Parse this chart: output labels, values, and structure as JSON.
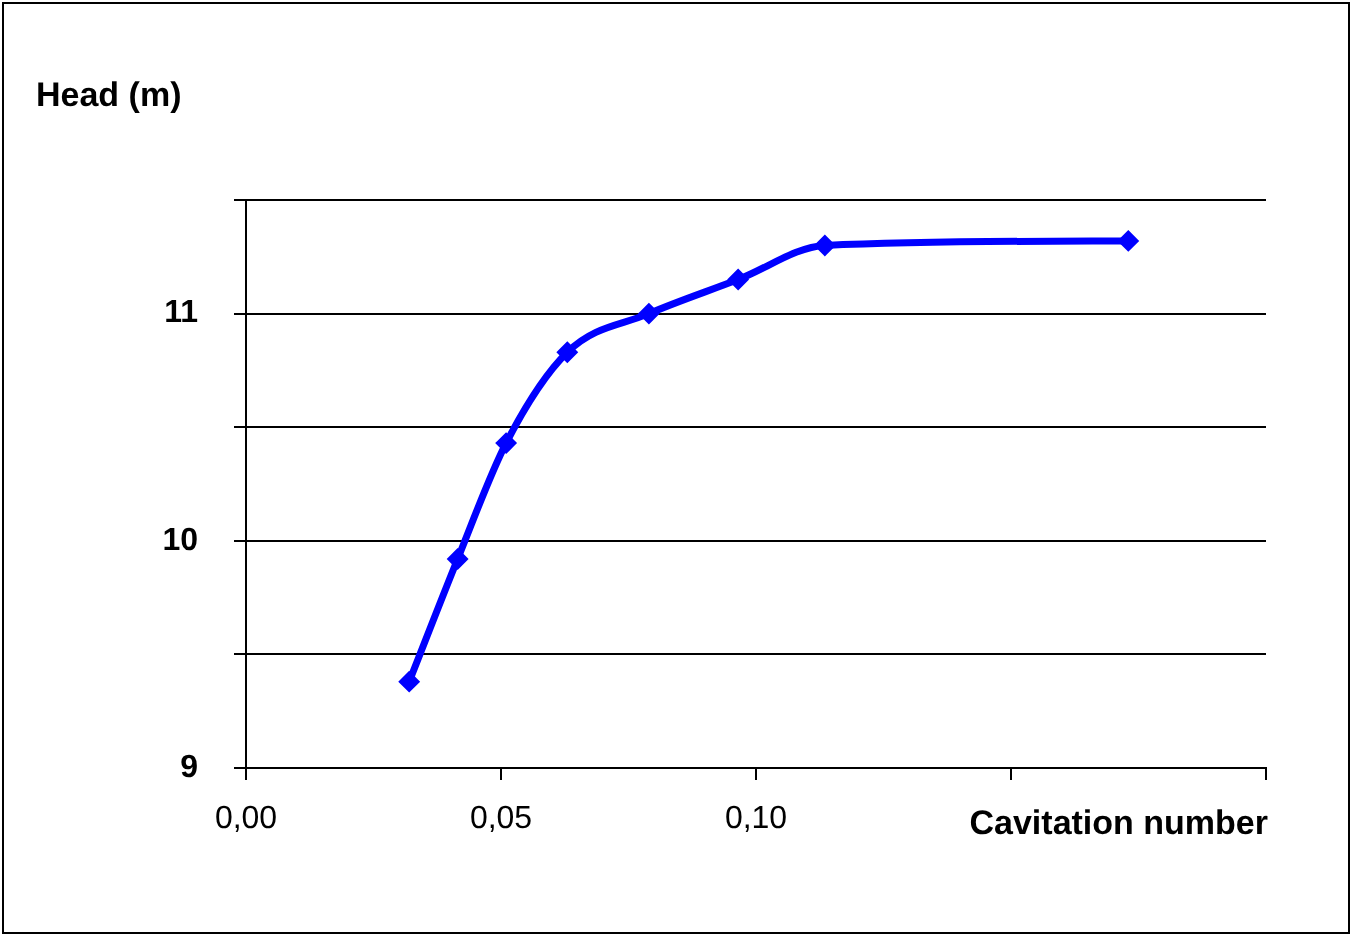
{
  "chart_data": {
    "type": "line",
    "ylabel": "Head (m)",
    "xlabel": "Cavitation number",
    "x": [
      0.032,
      0.0415,
      0.051,
      0.063,
      0.079,
      0.0965,
      0.1135,
      0.173
    ],
    "series": [
      {
        "color": "#0000ff",
        "values": [
          9.38,
          9.92,
          10.43,
          10.83,
          11.0,
          11.15,
          11.3,
          11.32
        ]
      }
    ],
    "xlim": [
      0,
      0.2
    ],
    "xticks": [
      {
        "value": 0,
        "label": "0,00"
      },
      {
        "value": 0.05,
        "label": "0,05"
      },
      {
        "value": 0.1,
        "label": "0,10"
      },
      {
        "value": 0.15,
        "label": null
      },
      {
        "value": 0.2,
        "label": null
      }
    ],
    "ylim": [
      9,
      11.5
    ],
    "yticks": [
      9,
      {
        "value": 9.5,
        "label": null
      },
      10,
      {
        "value": 10.5,
        "label": null
      },
      11,
      {
        "value": 11.5,
        "label": null
      }
    ],
    "grid": "y",
    "legend": false,
    "marker": "diamond",
    "line_style": "solid"
  }
}
